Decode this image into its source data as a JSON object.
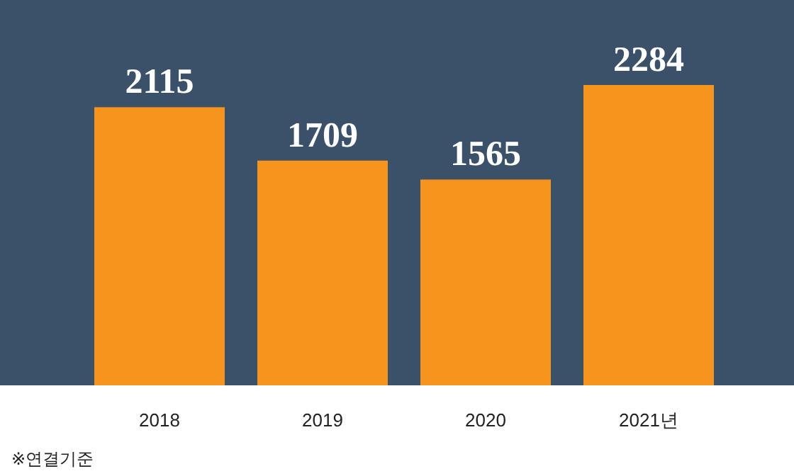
{
  "chart_data": {
    "type": "bar",
    "categories": [
      "2018",
      "2019",
      "2020",
      "2021년"
    ],
    "values": [
      2115,
      1709,
      1565,
      2284
    ],
    "color": "#f7941d",
    "data_labels": true,
    "annotations": [
      "※연결기준"
    ]
  }
}
